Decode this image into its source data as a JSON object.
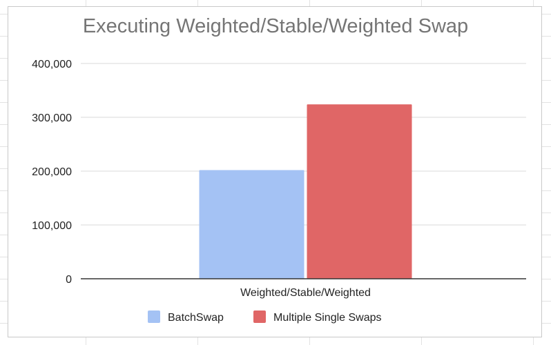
{
  "chart_data": {
    "type": "bar",
    "title": "Executing Weighted/Stable/Weighted Swap",
    "categories": [
      "Weighted/Stable/Weighted"
    ],
    "series": [
      {
        "name": "BatchSwap",
        "values": [
          202000
        ],
        "color": "#a4c2f4"
      },
      {
        "name": "Multiple Single Swaps",
        "values": [
          324000
        ],
        "color": "#e06666"
      }
    ],
    "xlabel": "",
    "ylabel": "",
    "ylim": [
      0,
      400000
    ],
    "yticks": [
      "0",
      "100,000",
      "200,000",
      "300,000",
      "400,000"
    ],
    "ytick_values": [
      0,
      100000,
      200000,
      300000,
      400000
    ],
    "grid": true,
    "legend_position": "bottom"
  }
}
